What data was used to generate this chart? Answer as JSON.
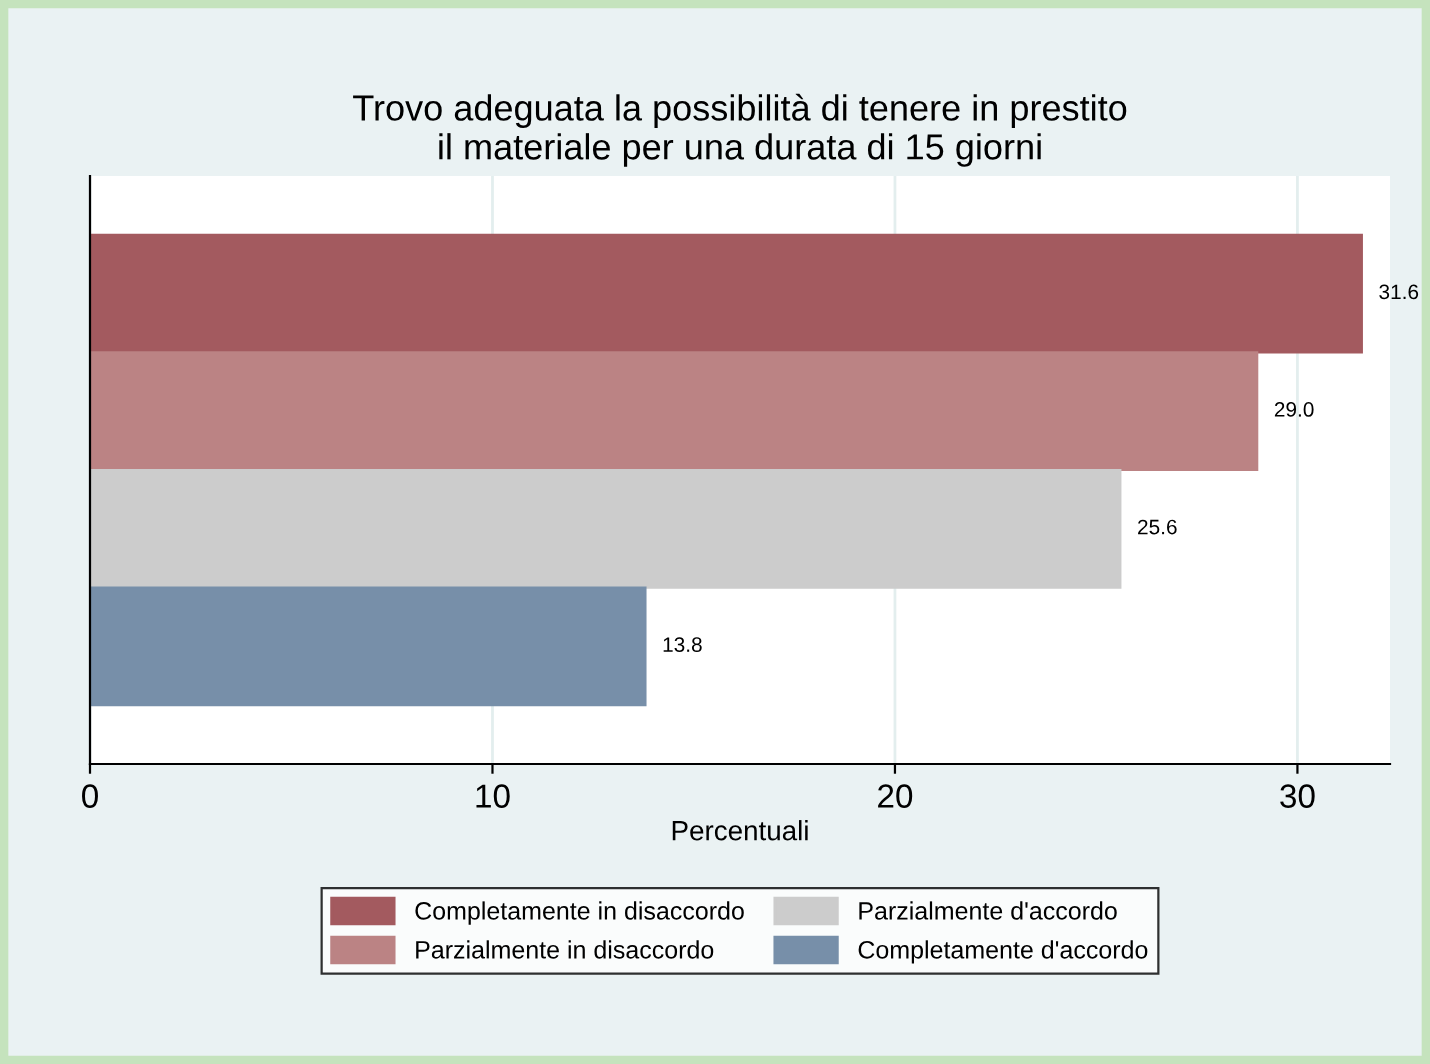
{
  "chart_data": {
    "type": "bar",
    "orientation": "horizontal",
    "title": "Trovo adeguata la possibilità di tenere in prestito\nil materiale per una durata di 15 giorni",
    "xlabel": "Percentuali",
    "categories": [
      null
    ],
    "series": [
      {
        "name": "Completamente in disaccordo",
        "color": "#a35a5f",
        "values": [
          31.6
        ],
        "value_labels": [
          "31.6"
        ]
      },
      {
        "name": "Parzialmente in disaccordo",
        "color": "#bb8384",
        "values": [
          29.0
        ],
        "value_labels": [
          "29.0"
        ]
      },
      {
        "name": "Parzialmente d'accordo",
        "color": "#cccccc",
        "values": [
          25.6
        ],
        "value_labels": [
          "25.6"
        ]
      },
      {
        "name": "Completamente d'accordo",
        "color": "#778fa9",
        "values": [
          13.8
        ],
        "value_labels": [
          "13.8"
        ]
      }
    ],
    "xlim": [
      0,
      32.3
    ],
    "xticks": [
      0,
      10,
      20,
      30
    ],
    "grid": "x",
    "legend": "bottom"
  }
}
